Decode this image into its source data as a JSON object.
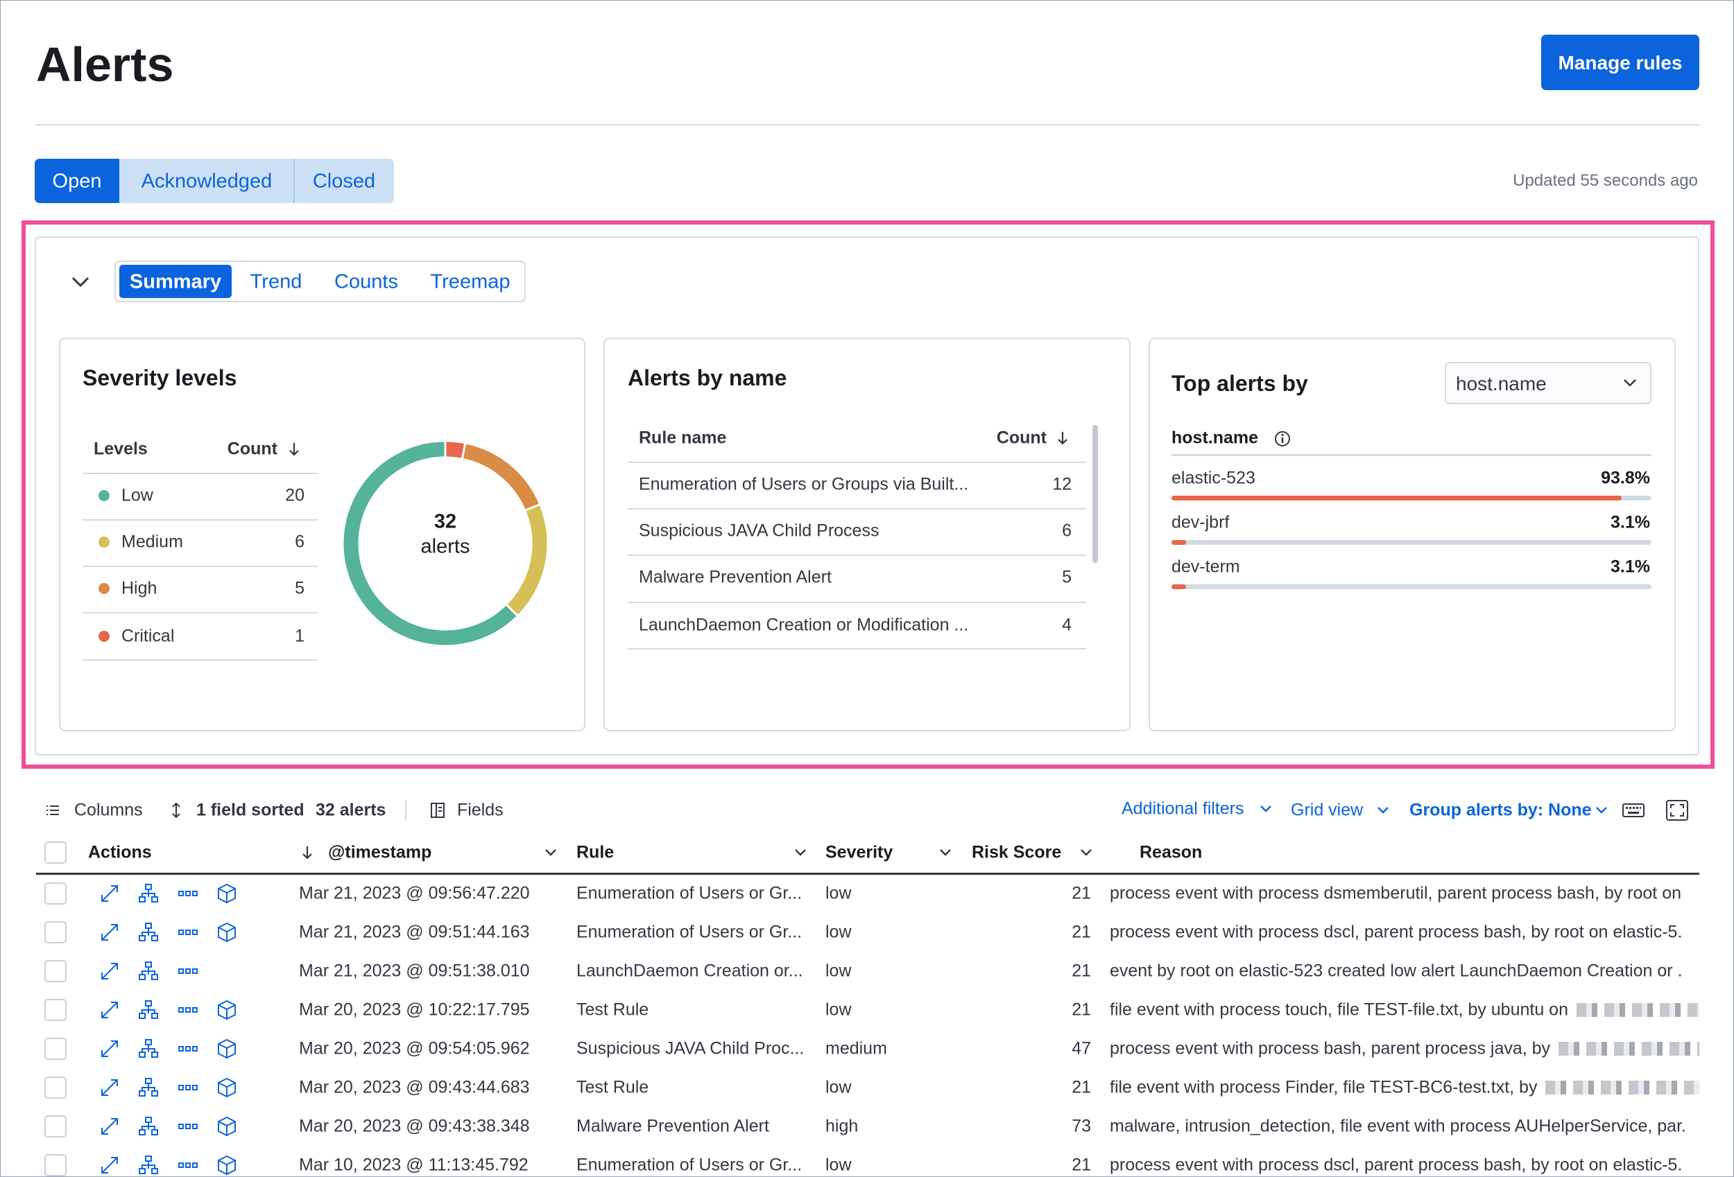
{
  "header": {
    "title": "Alerts",
    "button": "Manage rules"
  },
  "status_tabs": [
    "Open",
    "Acknowledged",
    "Closed"
  ],
  "updated": "Updated 55 seconds ago",
  "summary_tabs": [
    "Summary",
    "Trend",
    "Counts",
    "Treemap"
  ],
  "severity": {
    "title": "Severity levels",
    "columns": [
      "Levels",
      "Count"
    ],
    "rows": [
      {
        "level": "Low",
        "count": 20,
        "color": "#54b399"
      },
      {
        "level": "Medium",
        "count": 6,
        "color": "#d6bf57"
      },
      {
        "level": "High",
        "count": 5,
        "color": "#da8b45"
      },
      {
        "level": "Critical",
        "count": 1,
        "color": "#e7664c"
      }
    ],
    "total": 32,
    "total_label": "alerts"
  },
  "alerts_by_name": {
    "title": "Alerts by name",
    "columns": [
      "Rule name",
      "Count"
    ],
    "rows": [
      {
        "name": "Enumeration of Users or Groups via Built...",
        "count": 12
      },
      {
        "name": "Suspicious JAVA Child Process",
        "count": 6
      },
      {
        "name": "Malware Prevention Alert",
        "count": 5
      },
      {
        "name": "LaunchDaemon Creation or Modification ...",
        "count": 4
      }
    ]
  },
  "top_alerts": {
    "title": "Top alerts by",
    "select": "host.name",
    "field": "host.name",
    "bar_color": "#e7664c",
    "rows": [
      {
        "name": "elastic-523",
        "percent": {
          "value": 93.8,
          "label": "93.8%"
        }
      },
      {
        "name": "dev-jbrf",
        "percent": {
          "value": 3.1,
          "label": "3.1%"
        }
      },
      {
        "name": "dev-term",
        "percent": {
          "value": 3.1,
          "label": "3.1%"
        }
      }
    ]
  },
  "toolbar": {
    "columns": "Columns",
    "sorted": "1 field sorted",
    "count": "32 alerts",
    "fields": "Fields",
    "filters": "Additional filters",
    "grid": "Grid view",
    "group": "Group alerts by: None"
  },
  "table": {
    "columns": [
      "Actions",
      "@timestamp",
      "Rule",
      "Severity",
      "Risk Score",
      "Reason"
    ],
    "rows": [
      [
        "Mar 21, 2023 @ 09:56:47.220",
        "Enumeration of Users or Gr...",
        "low",
        21,
        "process event with process dsmemberutil, parent process bash, by root on"
      ],
      [
        "Mar 21, 2023 @ 09:51:44.163",
        "Enumeration of Users or Gr...",
        "low",
        21,
        "process event with process dscl, parent process bash, by root on elastic-5."
      ],
      [
        "Mar 21, 2023 @ 09:51:38.010",
        "LaunchDaemon Creation or...",
        "low",
        21,
        "event by root on elastic-523 created low alert LaunchDaemon Creation or ."
      ],
      [
        "Mar 20, 2023 @ 10:22:17.795",
        "Test Rule",
        "low",
        21,
        "file event with process touch, file TEST-file.txt, by ubuntu on"
      ],
      [
        "Mar 20, 2023 @ 09:54:05.962",
        "Suspicious JAVA Child Proc...",
        "medium",
        47,
        "process event with process bash, parent process java, by"
      ],
      [
        "Mar 20, 2023 @ 09:43:44.683",
        "Test Rule",
        "low",
        21,
        "file event with process Finder, file TEST-BC6-test.txt, by"
      ],
      [
        "Mar 20, 2023 @ 09:43:38.348",
        "Malware Prevention Alert",
        "high",
        73,
        "malware, intrusion_detection, file event with process AUHelperService, par."
      ],
      [
        "Mar 10, 2023 @ 11:13:45.792",
        "Enumeration of Users or Gr...",
        "low",
        21,
        "process event with process dscl, parent process bash, by root on elastic-5."
      ]
    ]
  }
}
